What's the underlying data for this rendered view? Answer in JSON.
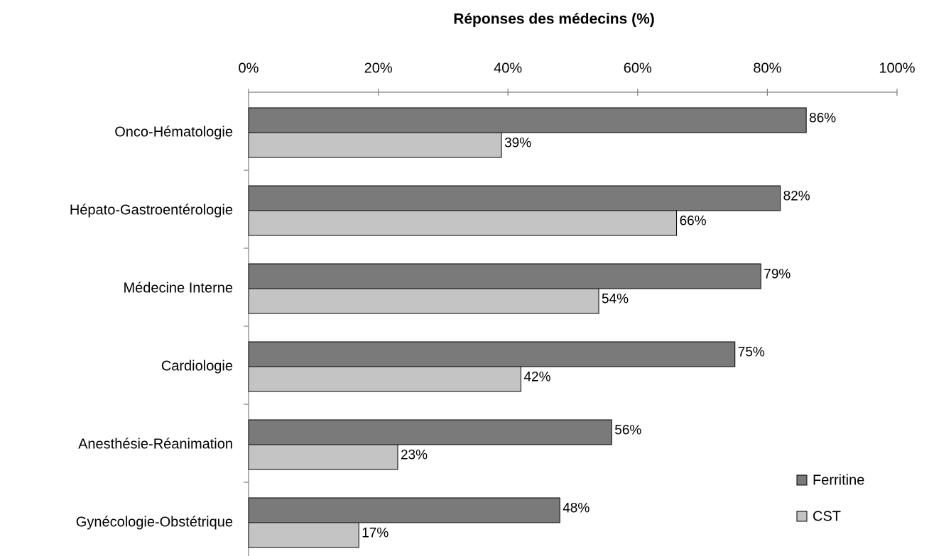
{
  "chart_data": {
    "type": "barh",
    "title": "Réponses des médecins (%)",
    "categories": [
      "Onco-Hématologie",
      "Hépato-Gastroentérologie",
      "Médecine Interne",
      "Cardiologie",
      "Anesthésie-Réanimation",
      "Gynécologie-Obstétrique"
    ],
    "series": [
      {
        "name": "Ferritine",
        "color": "#7a7a7a",
        "values": [
          86,
          82,
          79,
          75,
          56,
          48
        ],
        "value_labels": [
          "86%",
          "82%",
          "79%",
          "75%",
          "56%",
          "48%"
        ]
      },
      {
        "name": "CST",
        "color": "#c4c4c4",
        "values": [
          39,
          66,
          54,
          42,
          23,
          17
        ],
        "value_labels": [
          "39%",
          "66%",
          "54%",
          "42%",
          "23%",
          "17%"
        ]
      }
    ],
    "xlim": [
      0,
      100
    ],
    "xticks": [
      {
        "value": 0,
        "label": "0%"
      },
      {
        "value": 20,
        "label": "20%"
      },
      {
        "value": 40,
        "label": "40%"
      },
      {
        "value": 60,
        "label": "60%"
      },
      {
        "value": 80,
        "label": "80%"
      },
      {
        "value": 100,
        "label": "100%"
      }
    ],
    "legend": "lower right"
  }
}
